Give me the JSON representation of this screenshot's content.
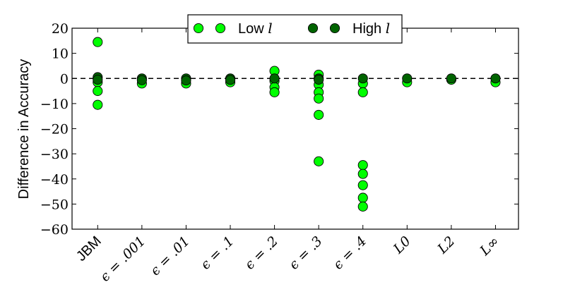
{
  "chart_data": {
    "type": "scatter",
    "title": "",
    "xlabel": "",
    "ylabel": "Difference in Accuracy",
    "ylim": [
      -60,
      20
    ],
    "yticks": [
      20,
      10,
      0,
      -10,
      -20,
      -30,
      -40,
      -50,
      -60
    ],
    "ytick_labels": [
      "20",
      "10",
      "0",
      "−10",
      "−20",
      "−30",
      "−40",
      "−50",
      "−60"
    ],
    "categories": [
      "JBM",
      "ϵ = .001",
      "ϵ = .01",
      "ϵ = .1",
      "ϵ = .2",
      "ϵ = .3",
      "ϵ = .4",
      "L0",
      "L2",
      "L∞"
    ],
    "reference_line": {
      "y": 0,
      "style": "dashed",
      "color": "#000000"
    },
    "legend_position": "top-center",
    "series": [
      {
        "name": "Low l",
        "color": "#00ff00",
        "points": [
          [
            0,
            14.5
          ],
          [
            0,
            -1.5
          ],
          [
            0,
            -5
          ],
          [
            0,
            -10.5
          ],
          [
            1,
            -2
          ],
          [
            2,
            -2
          ],
          [
            3,
            -1.5
          ],
          [
            4,
            3
          ],
          [
            4,
            -1
          ],
          [
            4,
            -3.5
          ],
          [
            4,
            -5.5
          ],
          [
            5,
            1.5
          ],
          [
            5,
            -2.5
          ],
          [
            5,
            -5.5
          ],
          [
            5,
            -8
          ],
          [
            5,
            -14.5
          ],
          [
            5,
            -33
          ],
          [
            6,
            -2
          ],
          [
            6,
            -5.5
          ],
          [
            6,
            -34.5
          ],
          [
            6,
            -38
          ],
          [
            6,
            -42.5
          ],
          [
            6,
            -47.5
          ],
          [
            6,
            -51
          ],
          [
            7,
            -1.5
          ],
          [
            8,
            -0.5
          ],
          [
            9,
            -1.5
          ]
        ]
      },
      {
        "name": "High l",
        "color": "#006400",
        "points": [
          [
            0,
            0.5
          ],
          [
            0,
            -0.5
          ],
          [
            1,
            0
          ],
          [
            1,
            -0.7
          ],
          [
            2,
            0
          ],
          [
            2,
            -0.8
          ],
          [
            3,
            0
          ],
          [
            3,
            -0.6
          ],
          [
            4,
            0
          ],
          [
            5,
            0
          ],
          [
            5,
            -0.5
          ],
          [
            6,
            0
          ],
          [
            7,
            0
          ],
          [
            8,
            0
          ],
          [
            9,
            0
          ]
        ]
      }
    ],
    "legend": {
      "entries": [
        {
          "base": "Low ",
          "ital": "l",
          "color": "#00ff00"
        },
        {
          "base": "High ",
          "ital": "l",
          "color": "#006400"
        }
      ]
    }
  }
}
